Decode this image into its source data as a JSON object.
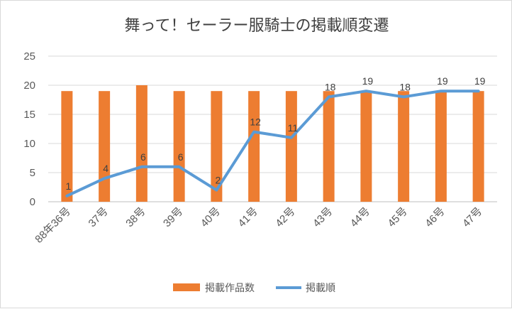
{
  "chart_data": {
    "type": "bar+line",
    "title": "舞って！セーラー服騎士の掲載順変遷",
    "categories": [
      "88年36号",
      "37号",
      "38号",
      "39号",
      "40号",
      "41号",
      "42号",
      "43号",
      "44号",
      "45号",
      "46号",
      "47号"
    ],
    "series": [
      {
        "name": "掲載作品数",
        "type": "bar",
        "color": "#ED7D31",
        "values": [
          19,
          19,
          20,
          19,
          19,
          19,
          19,
          19,
          19,
          19,
          19,
          19
        ]
      },
      {
        "name": "掲載順",
        "type": "line",
        "color": "#5B9BD5",
        "values": [
          1,
          4,
          6,
          6,
          2,
          12,
          11,
          18,
          19,
          18,
          19,
          19
        ]
      }
    ],
    "ylim": [
      0,
      25
    ],
    "yticks": [
      0,
      5,
      10,
      15,
      20,
      25
    ],
    "grid": true,
    "legend": "bottom",
    "xlabel": "",
    "ylabel": ""
  }
}
